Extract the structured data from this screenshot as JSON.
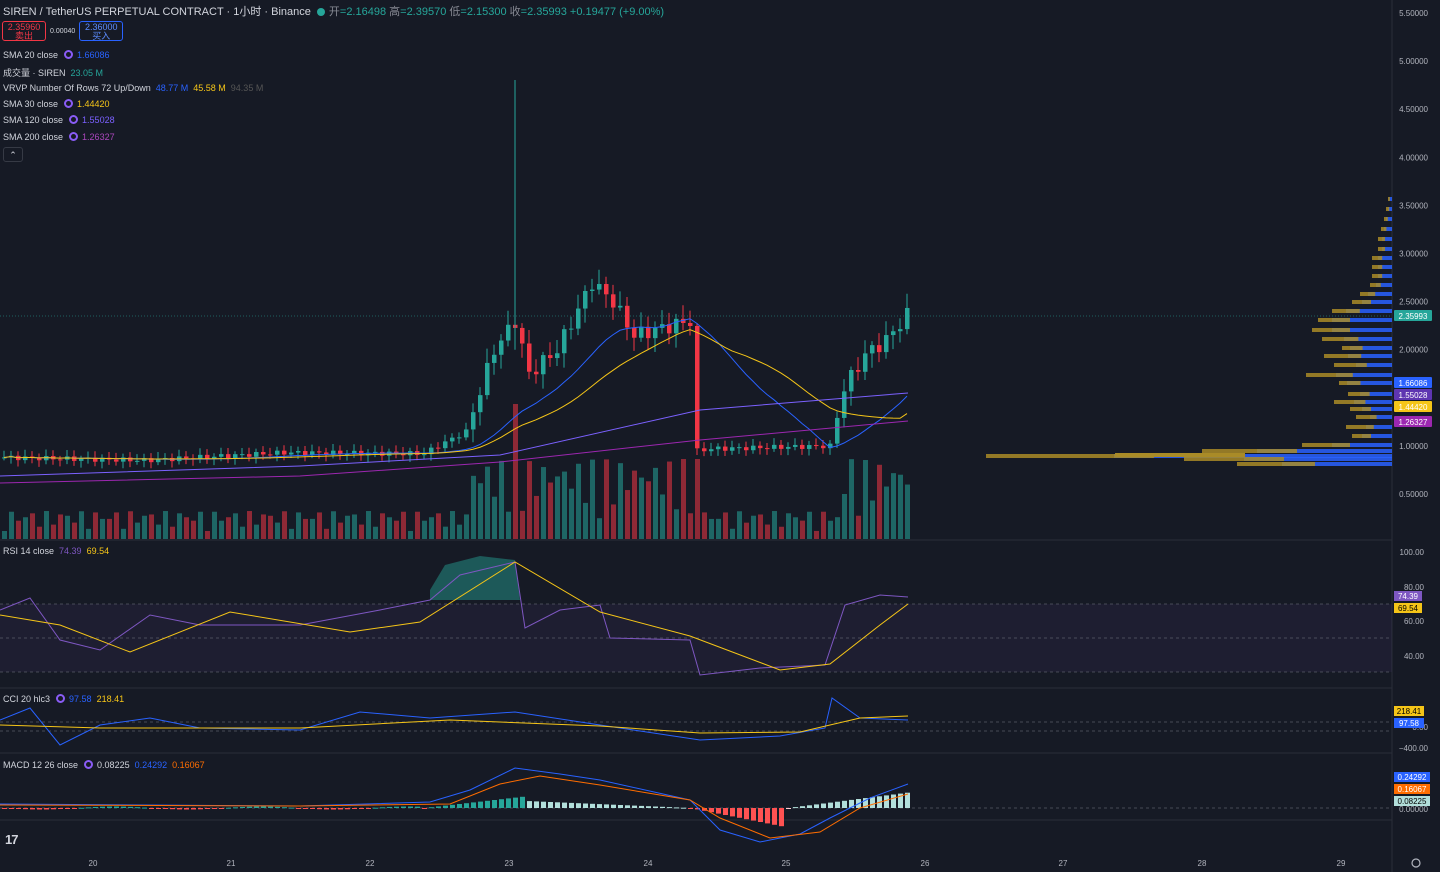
{
  "header": {
    "symbol": "SIREN / TetherUS PERPETUAL CONTRACT · 1小时 · Binance",
    "open_label": "开",
    "open": "=2.16498",
    "high_label": "高",
    "high": "=2.39570",
    "low_label": "低",
    "low": "=2.15300",
    "close_label": "收",
    "close": "=2.35993",
    "change": "+0.19477 (+9.00%)"
  },
  "trade": {
    "sell_price": "2.35960",
    "sell_label": "卖出",
    "spread": "0.00040",
    "buy_price": "2.36000",
    "buy_label": "买入"
  },
  "indicators": {
    "sma20": {
      "name": "SMA 20 close",
      "value": "1.66086",
      "color": "#2962ff"
    },
    "volume": {
      "name": "成交量 · SIREN",
      "value": "23.05 M",
      "color": "#26a69a"
    },
    "vrvp": {
      "name": "VRVP Number Of Rows 72 Up/Down",
      "up": "48.77 M",
      "down": "45.58 M",
      "total": "94.35 M"
    },
    "sma30": {
      "name": "SMA 30 close",
      "value": "1.44420",
      "color": "#f5c518"
    },
    "sma120": {
      "name": "SMA 120 close",
      "value": "1.55028",
      "color": "#7b61ff"
    },
    "sma200": {
      "name": "SMA 200 close",
      "value": "1.26327",
      "color": "#9c27b0"
    }
  },
  "collapse_icon": "chevron-up-icon",
  "price_axis": {
    "ticks": [
      "5.50000",
      "5.00000",
      "4.50000",
      "4.00000",
      "3.50000",
      "3.00000",
      "2.50000",
      "2.00000",
      "1.00000",
      "0.50000"
    ],
    "tags": [
      {
        "text": "2.35993",
        "color": "#26a69a"
      },
      {
        "text": "1.66086",
        "color": "#2962ff"
      },
      {
        "text": "1.55028",
        "color": "#5e35b1"
      },
      {
        "text": "1.44420",
        "color": "#f5c518"
      },
      {
        "text": "1.26327",
        "color": "#9c27b0"
      }
    ]
  },
  "rsi": {
    "name": "RSI 14 close",
    "value": "74.39",
    "ma": "69.54",
    "ticks": [
      "100.00",
      "80.00",
      "60.00",
      "40.00"
    ]
  },
  "cci": {
    "name": "CCI 20 hlc3",
    "value": "97.58",
    "ma": "218.41",
    "ticks": [
      "0.00",
      "−400.00"
    ]
  },
  "macd": {
    "name": "MACD 12 26 close",
    "hist": "0.08225",
    "macd": "0.24292",
    "signal": "0.16067",
    "ticks": [
      "0.00000"
    ]
  },
  "time_axis": [
    "20",
    "21",
    "22",
    "23",
    "24",
    "25",
    "26",
    "27",
    "28",
    "29"
  ],
  "icons": {
    "settings": "settings-icon",
    "logo": "tradingview-logo"
  }
}
